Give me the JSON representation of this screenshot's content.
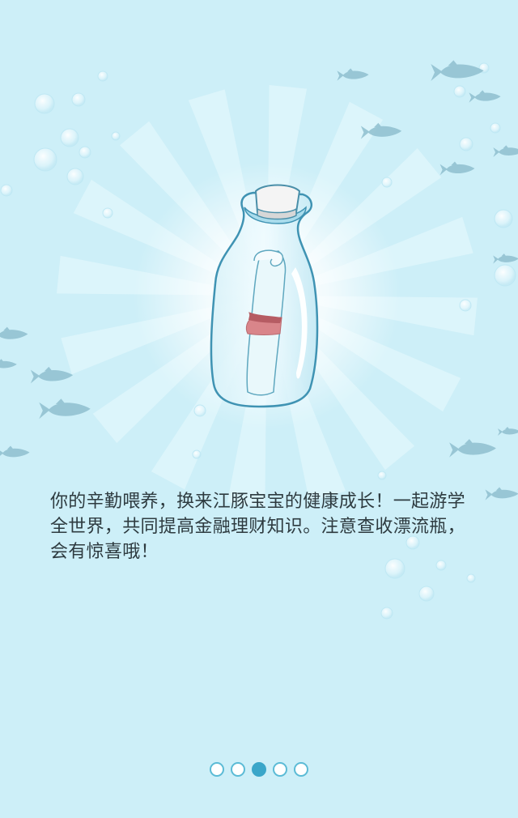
{
  "intro": {
    "text": "你的辛勤喂养，换来江豚宝宝的健康成长！一起游学全世界，共同提高金融理财知识。注意查收漂流瓶，会有惊喜哦！"
  },
  "pager": {
    "total": 5,
    "active_index": 2
  },
  "colors": {
    "background": "#cdeff8",
    "accent": "#3aa6c9",
    "fish": "#8fbfcf"
  },
  "icons": {
    "bottle": "message-in-bottle-icon",
    "fish": "fish-silhouette-icon"
  }
}
